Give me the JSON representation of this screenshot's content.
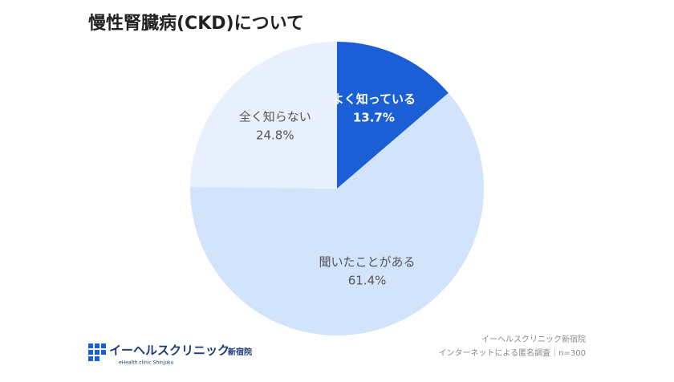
{
  "chart_data": {
    "type": "pie",
    "title": "慢性腎臓病(CKD)について",
    "categories": [
      "よく知っている",
      "聞いたことがある",
      "全く知らない"
    ],
    "values": [
      13.7,
      61.4,
      24.8
    ],
    "value_labels": [
      "13.7%",
      "61.4%",
      "24.8%"
    ],
    "colors": [
      "#1a5fd6",
      "#d2e3fc",
      "#e8f0fe"
    ],
    "logo": {
      "name": "イーヘルスクリニック",
      "suffix": "新宿院",
      "subtitle": "eHealth clinic Shinjuku"
    },
    "source": [
      "イーヘルスクリニック新宿院",
      "インターネットによる匿名調査｜n=300"
    ]
  }
}
